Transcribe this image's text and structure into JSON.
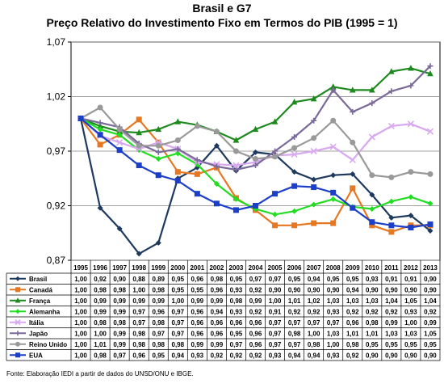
{
  "chart_data": {
    "type": "line",
    "title": "Brasil e G7",
    "subtitle": "Preço Relativo do Investimento Fixo em Termos do PIB (1995 = 1)",
    "source": "Fonte: Elaboração IEDI a partir de dados do UNSD/ONU e IBGE.",
    "x": [
      "1995",
      "1996",
      "1997",
      "1998",
      "1999",
      "2000",
      "2001",
      "2002",
      "2003",
      "2004",
      "2005",
      "2006",
      "2007",
      "2008",
      "2009",
      "2010",
      "2011",
      "2012",
      "2013"
    ],
    "ylim": [
      0.87,
      1.07
    ],
    "yticks": [
      "0,87",
      "0,92",
      "0,97",
      "1,02",
      "1,07"
    ],
    "grid": true,
    "series": [
      {
        "name": "Brasil",
        "color": "#1f3a5f",
        "marker": "diamond",
        "values": [
          1.0,
          0.918,
          0.899,
          0.876,
          0.886,
          0.945,
          0.955,
          0.975,
          0.952,
          0.969,
          0.967,
          0.951,
          0.944,
          0.948,
          0.949,
          0.93,
          0.909,
          0.911,
          0.897
        ],
        "labels": [
          "1,00",
          "0,92",
          "0,90",
          "0,88",
          "0,89",
          "0,95",
          "0,96",
          "0,98",
          "0,95",
          "0,97",
          "0,97",
          "0,95",
          "0,94",
          "0,95",
          "0,95",
          "0,93",
          "0,91",
          "0,91",
          "0,90"
        ]
      },
      {
        "name": "Canadá",
        "color": "#e87722",
        "marker": "square",
        "values": [
          1.0,
          0.976,
          0.985,
          0.999,
          0.978,
          0.951,
          0.949,
          0.955,
          0.927,
          0.916,
          0.902,
          0.902,
          0.904,
          0.904,
          0.936,
          0.902,
          0.896,
          0.902,
          0.902
        ],
        "labels": [
          "1,00",
          "0,98",
          "0,98",
          "1,00",
          "0,98",
          "0,95",
          "0,95",
          "0,96",
          "0,93",
          "0,92",
          "0,90",
          "0,90",
          "0,90",
          "0,90",
          "0,94",
          "0,90",
          "0,90",
          "0,90",
          "0,90"
        ]
      },
      {
        "name": "França",
        "color": "#1e8a1e",
        "marker": "triangle",
        "values": [
          1.0,
          0.993,
          0.988,
          0.987,
          0.99,
          0.997,
          0.994,
          0.988,
          0.98,
          0.99,
          0.997,
          1.015,
          1.018,
          1.029,
          1.026,
          1.026,
          1.043,
          1.046,
          1.041
        ],
        "labels": [
          "1,00",
          "0,99",
          "0,99",
          "0,99",
          "0,99",
          "1,00",
          "0,99",
          "0,99",
          "0,98",
          "0,99",
          "1,00",
          "1,01",
          "1,02",
          "1,03",
          "1,03",
          "1,03",
          "1,04",
          "1,05",
          "1,04"
        ]
      },
      {
        "name": "Alemanha",
        "color": "#22dd22",
        "marker": "diamond",
        "values": [
          1.0,
          0.99,
          0.985,
          0.971,
          0.963,
          0.968,
          0.958,
          0.94,
          0.926,
          0.917,
          0.912,
          0.915,
          0.921,
          0.926,
          0.919,
          0.917,
          0.924,
          0.928,
          0.922
        ],
        "labels": [
          "1,00",
          "0,99",
          "0,99",
          "0,97",
          "0,96",
          "0,97",
          "0,96",
          "0,94",
          "0,93",
          "0,92",
          "0,91",
          "0,92",
          "0,92",
          "0,93",
          "0,92",
          "0,92",
          "0,92",
          "0,93",
          "0,92"
        ]
      },
      {
        "name": "Itália",
        "color": "#d8a8f0",
        "marker": "cross",
        "values": [
          1.0,
          0.984,
          0.978,
          0.972,
          0.978,
          0.972,
          0.96,
          0.958,
          0.957,
          0.96,
          0.966,
          0.967,
          0.97,
          0.974,
          0.962,
          0.983,
          0.993,
          0.995,
          0.988
        ],
        "labels": [
          "1,00",
          "0,98",
          "0,98",
          "0,97",
          "0,98",
          "0,97",
          "0,96",
          "0,96",
          "0,96",
          "0,96",
          "0,97",
          "0,97",
          "0,97",
          "0,97",
          "0,96",
          "0,98",
          "0,99",
          "1,00",
          "0,99"
        ]
      },
      {
        "name": "Japão",
        "color": "#7a6a9a",
        "marker": "plus",
        "values": [
          1.0,
          0.996,
          0.992,
          0.977,
          0.969,
          0.972,
          0.962,
          0.956,
          0.953,
          0.957,
          0.97,
          0.983,
          0.998,
          1.026,
          1.006,
          1.014,
          1.025,
          1.03,
          1.048
        ],
        "labels": [
          "1,00",
          "1,00",
          "0,99",
          "0,98",
          "0,97",
          "0,97",
          "0,96",
          "0,96",
          "0,95",
          "0,96",
          "0,97",
          "0,98",
          "1,00",
          "1,03",
          "1,01",
          "1,01",
          "1,03",
          "1,03",
          "1,05"
        ]
      },
      {
        "name": "Reino Unido",
        "color": "#999999",
        "marker": "circle",
        "values": [
          1.0,
          1.01,
          0.99,
          0.975,
          0.975,
          0.98,
          0.993,
          0.988,
          0.97,
          0.963,
          0.965,
          0.973,
          0.982,
          0.998,
          0.978,
          0.948,
          0.946,
          0.951,
          0.949
        ],
        "labels": [
          "1,00",
          "1,01",
          "0,99",
          "0,98",
          "0,98",
          "0,98",
          "0,99",
          "0,99",
          "0,97",
          "0,96",
          "0,97",
          "0,97",
          "0,98",
          "1,00",
          "0,98",
          "0,95",
          "0,95",
          "0,95",
          "0,95"
        ]
      },
      {
        "name": "EUA",
        "color": "#1c3fc9",
        "marker": "square",
        "values": [
          1.0,
          0.985,
          0.971,
          0.957,
          0.948,
          0.943,
          0.931,
          0.922,
          0.916,
          0.92,
          0.931,
          0.938,
          0.937,
          0.932,
          0.918,
          0.905,
          0.902,
          0.9,
          0.903
        ],
        "labels": [
          "1,00",
          "0,98",
          "0,97",
          "0,96",
          "0,95",
          "0,94",
          "0,93",
          "0,92",
          "0,92",
          "0,92",
          "0,93",
          "0,94",
          "0,94",
          "0,93",
          "0,92",
          "0,90",
          "0,90",
          "0,90",
          "0,90"
        ]
      }
    ]
  }
}
